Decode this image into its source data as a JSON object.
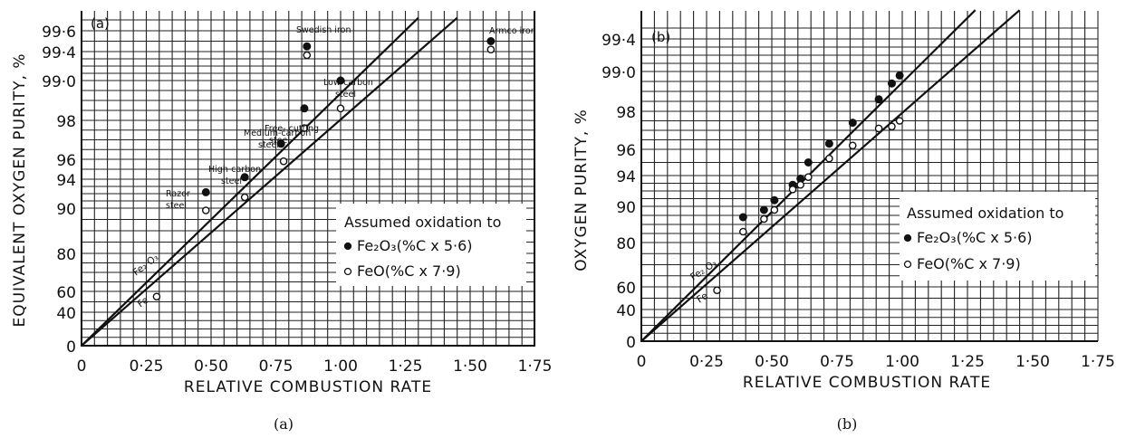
{
  "chart_data": [
    {
      "type": "scatter",
      "panel_label": "(a)",
      "caption": "(a)",
      "xlabel": "RELATIVE COMBUSTION RATE",
      "ylabel": "EQUIVALENT OXYGEN PURITY, %",
      "xlim": [
        0,
        1.75
      ],
      "x_ticks": [
        "0",
        "0·25",
        "0·50",
        "0·75",
        "1·00",
        "1·25",
        "1·50",
        "1·75"
      ],
      "y_ticks": [
        "0",
        "40",
        "60",
        "80",
        "90",
        "94",
        "96",
        "98",
        "99·0",
        "99·4",
        "99·6"
      ],
      "grid": true,
      "legend": {
        "title": "Assumed oxidation to",
        "items": [
          {
            "marker": "filled",
            "label": "Fe₂O₃(%C x 5·6)"
          },
          {
            "marker": "open",
            "label": "FeO(%C x 7·9)"
          }
        ],
        "placement": "bottom-right"
      },
      "lines": [
        {
          "label": "Fe₂O₃",
          "points": [
            [
              0,
              0
            ],
            [
              1.3,
              99.62
            ]
          ]
        },
        {
          "label": "FeO",
          "points": [
            [
              0,
              0
            ],
            [
              1.45,
              99.62
            ]
          ]
        }
      ],
      "series": [
        {
          "name": "Fe₂O₃",
          "marker": "filled",
          "points": [
            {
              "x": 0.48,
              "y": 92.2,
              "label": "Razor steel"
            },
            {
              "x": 0.63,
              "y": 94.2,
              "label": "High-carbon steel"
            },
            {
              "x": 0.77,
              "y": 96.8,
              "label": "Medium-carbon steel"
            },
            {
              "x": 0.86,
              "y": 98.3,
              "label": "Free-cutting steel"
            },
            {
              "x": 1.0,
              "y": 99.0,
              "label": "Low-carbon steel"
            },
            {
              "x": 0.87,
              "y": 99.45,
              "label": "Swedish iron"
            },
            {
              "x": 1.58,
              "y": 99.5,
              "label": "Armco iron"
            }
          ]
        },
        {
          "name": "FeO",
          "marker": "open",
          "points": [
            {
              "x": 0.29,
              "y": 55
            },
            {
              "x": 0.48,
              "y": 89.5
            },
            {
              "x": 0.63,
              "y": 91.5
            },
            {
              "x": 0.78,
              "y": 95.8
            },
            {
              "x": 0.86,
              "y": 97.6
            },
            {
              "x": 1.0,
              "y": 98.3
            },
            {
              "x": 0.87,
              "y": 99.35
            },
            {
              "x": 1.58,
              "y": 99.42
            }
          ]
        }
      ]
    },
    {
      "type": "scatter",
      "panel_label": "(b)",
      "caption": "(b)",
      "xlabel": "RELATIVE COMBUSTION RATE",
      "ylabel": "OXYGEN PURITY, %",
      "xlim": [
        0,
        1.75
      ],
      "x_ticks": [
        "0",
        "0·25",
        "0·50",
        "0·75",
        "1·00",
        "1·25",
        "1·50",
        "1·75"
      ],
      "y_ticks": [
        "0",
        "40",
        "60",
        "80",
        "90",
        "94",
        "96",
        "98",
        "99·0",
        "99·4"
      ],
      "grid": true,
      "legend": {
        "title": "Assumed oxidation to",
        "items": [
          {
            "marker": "filled",
            "label": "Fe₂O₃(%C x 5·6)"
          },
          {
            "marker": "open",
            "label": "FeO(%C x 7·9)"
          }
        ],
        "placement": "bottom-right"
      },
      "lines": [
        {
          "label": "Fe₂O₃",
          "points": [
            [
              0,
              0
            ],
            [
              1.28,
              99.62
            ]
          ]
        },
        {
          "label": "FeO",
          "points": [
            [
              0,
              0
            ],
            [
              1.45,
              99.62
            ]
          ]
        }
      ],
      "series": [
        {
          "name": "Fe₂O₃",
          "marker": "filled",
          "points": [
            {
              "x": 0.39,
              "y": 87
            },
            {
              "x": 0.47,
              "y": 89
            },
            {
              "x": 0.51,
              "y": 90.8
            },
            {
              "x": 0.58,
              "y": 92.8
            },
            {
              "x": 0.61,
              "y": 93.6
            },
            {
              "x": 0.64,
              "y": 95
            },
            {
              "x": 0.72,
              "y": 96.3
            },
            {
              "x": 0.81,
              "y": 97.4
            },
            {
              "x": 0.91,
              "y": 98.3
            },
            {
              "x": 0.96,
              "y": 98.7
            },
            {
              "x": 0.99,
              "y": 98.9
            }
          ]
        },
        {
          "name": "FeO",
          "marker": "open",
          "points": [
            {
              "x": 0.29,
              "y": 57
            },
            {
              "x": 0.39,
              "y": 83
            },
            {
              "x": 0.47,
              "y": 86.5
            },
            {
              "x": 0.51,
              "y": 89
            },
            {
              "x": 0.58,
              "y": 92.2
            },
            {
              "x": 0.61,
              "y": 92.8
            },
            {
              "x": 0.64,
              "y": 93.8
            },
            {
              "x": 0.72,
              "y": 95.3
            },
            {
              "x": 0.81,
              "y": 96.2
            },
            {
              "x": 0.91,
              "y": 97.1
            },
            {
              "x": 0.96,
              "y": 97.2
            },
            {
              "x": 0.99,
              "y": 97.5
            }
          ]
        }
      ]
    }
  ]
}
